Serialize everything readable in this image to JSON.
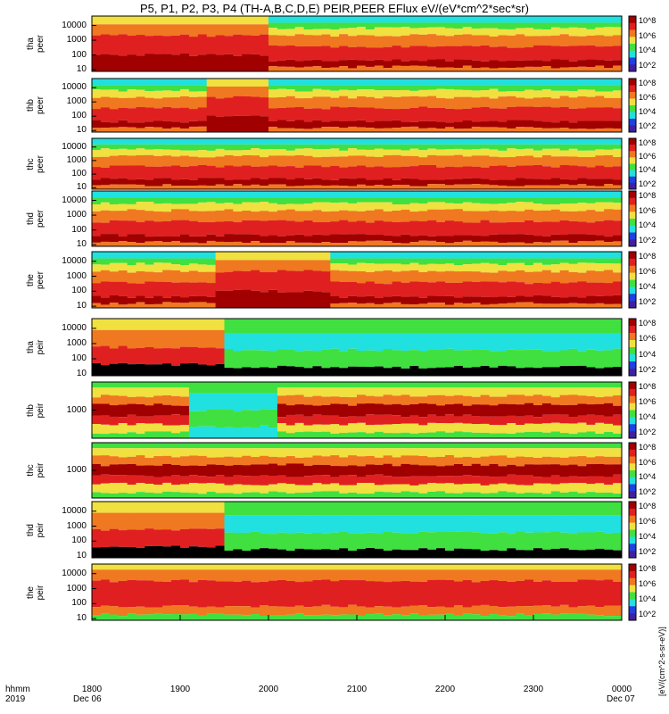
{
  "title": "P5, P1, P2, P3, P4 (TH-A,B,C,D,E) PEIR,PEER EFlux eV/(eV*cm^2*sec*sr)",
  "footer": {
    "axis_name": "hhmm",
    "year": "2019",
    "start_date": "Dec 06",
    "end_date": "Dec 07"
  },
  "colorbar_unit": "[eV/(cm^2-s-sr-eV)]",
  "colorbar_ticks": [
    "10^8",
    "10^6",
    "10^4",
    "10^2"
  ],
  "colors": {
    "dark_red": "#a00000",
    "red": "#e02020",
    "orange": "#f07820",
    "yellow": "#f0e040",
    "green": "#40e040",
    "cyan": "#20e0e0",
    "blue": "#2040e0",
    "black": "#000000"
  },
  "chart_data": {
    "type": "heatmap",
    "title": "P5, P1, P2, P3, P4 (TH-A,B,C,D,E) PEIR,PEER EFlux eV/(eV*cm^2*sec*sr)",
    "x_ticks": [
      "1800",
      "1900",
      "2000",
      "2100",
      "2200",
      "2300",
      "0000"
    ],
    "x_range": [
      "1800",
      "0000"
    ],
    "panels": [
      {
        "label": "tha\npeer",
        "y_ticks": [
          "10000",
          "1000",
          "100",
          "10"
        ],
        "species": "electron"
      },
      {
        "label": "thb\npeer",
        "y_ticks": [
          "10000",
          "1000",
          "100",
          "10"
        ],
        "species": "electron"
      },
      {
        "label": "thc\npeer",
        "y_ticks": [
          "10000",
          "1000",
          "100",
          "10"
        ],
        "species": "electron"
      },
      {
        "label": "thd\npeer",
        "y_ticks": [
          "10000",
          "1000",
          "100",
          "10"
        ],
        "species": "electron"
      },
      {
        "label": "the\npeer",
        "y_ticks": [
          "10000",
          "1000",
          "100",
          "10"
        ],
        "species": "electron"
      },
      {
        "label": "tha\npeir",
        "y_ticks": [
          "10000",
          "1000",
          "100",
          "10"
        ],
        "species": "ion"
      },
      {
        "label": "thb\npeir",
        "y_ticks": [
          "1000"
        ],
        "species": "ion"
      },
      {
        "label": "thc\npeir",
        "y_ticks": [
          "1000"
        ],
        "species": "ion"
      },
      {
        "label": "thd\npeir",
        "y_ticks": [
          "10000",
          "1000",
          "100",
          "10"
        ],
        "species": "ion"
      },
      {
        "label": "the\npeir",
        "y_ticks": [
          "10000",
          "1000",
          "100",
          "10"
        ],
        "species": "ion"
      }
    ]
  }
}
